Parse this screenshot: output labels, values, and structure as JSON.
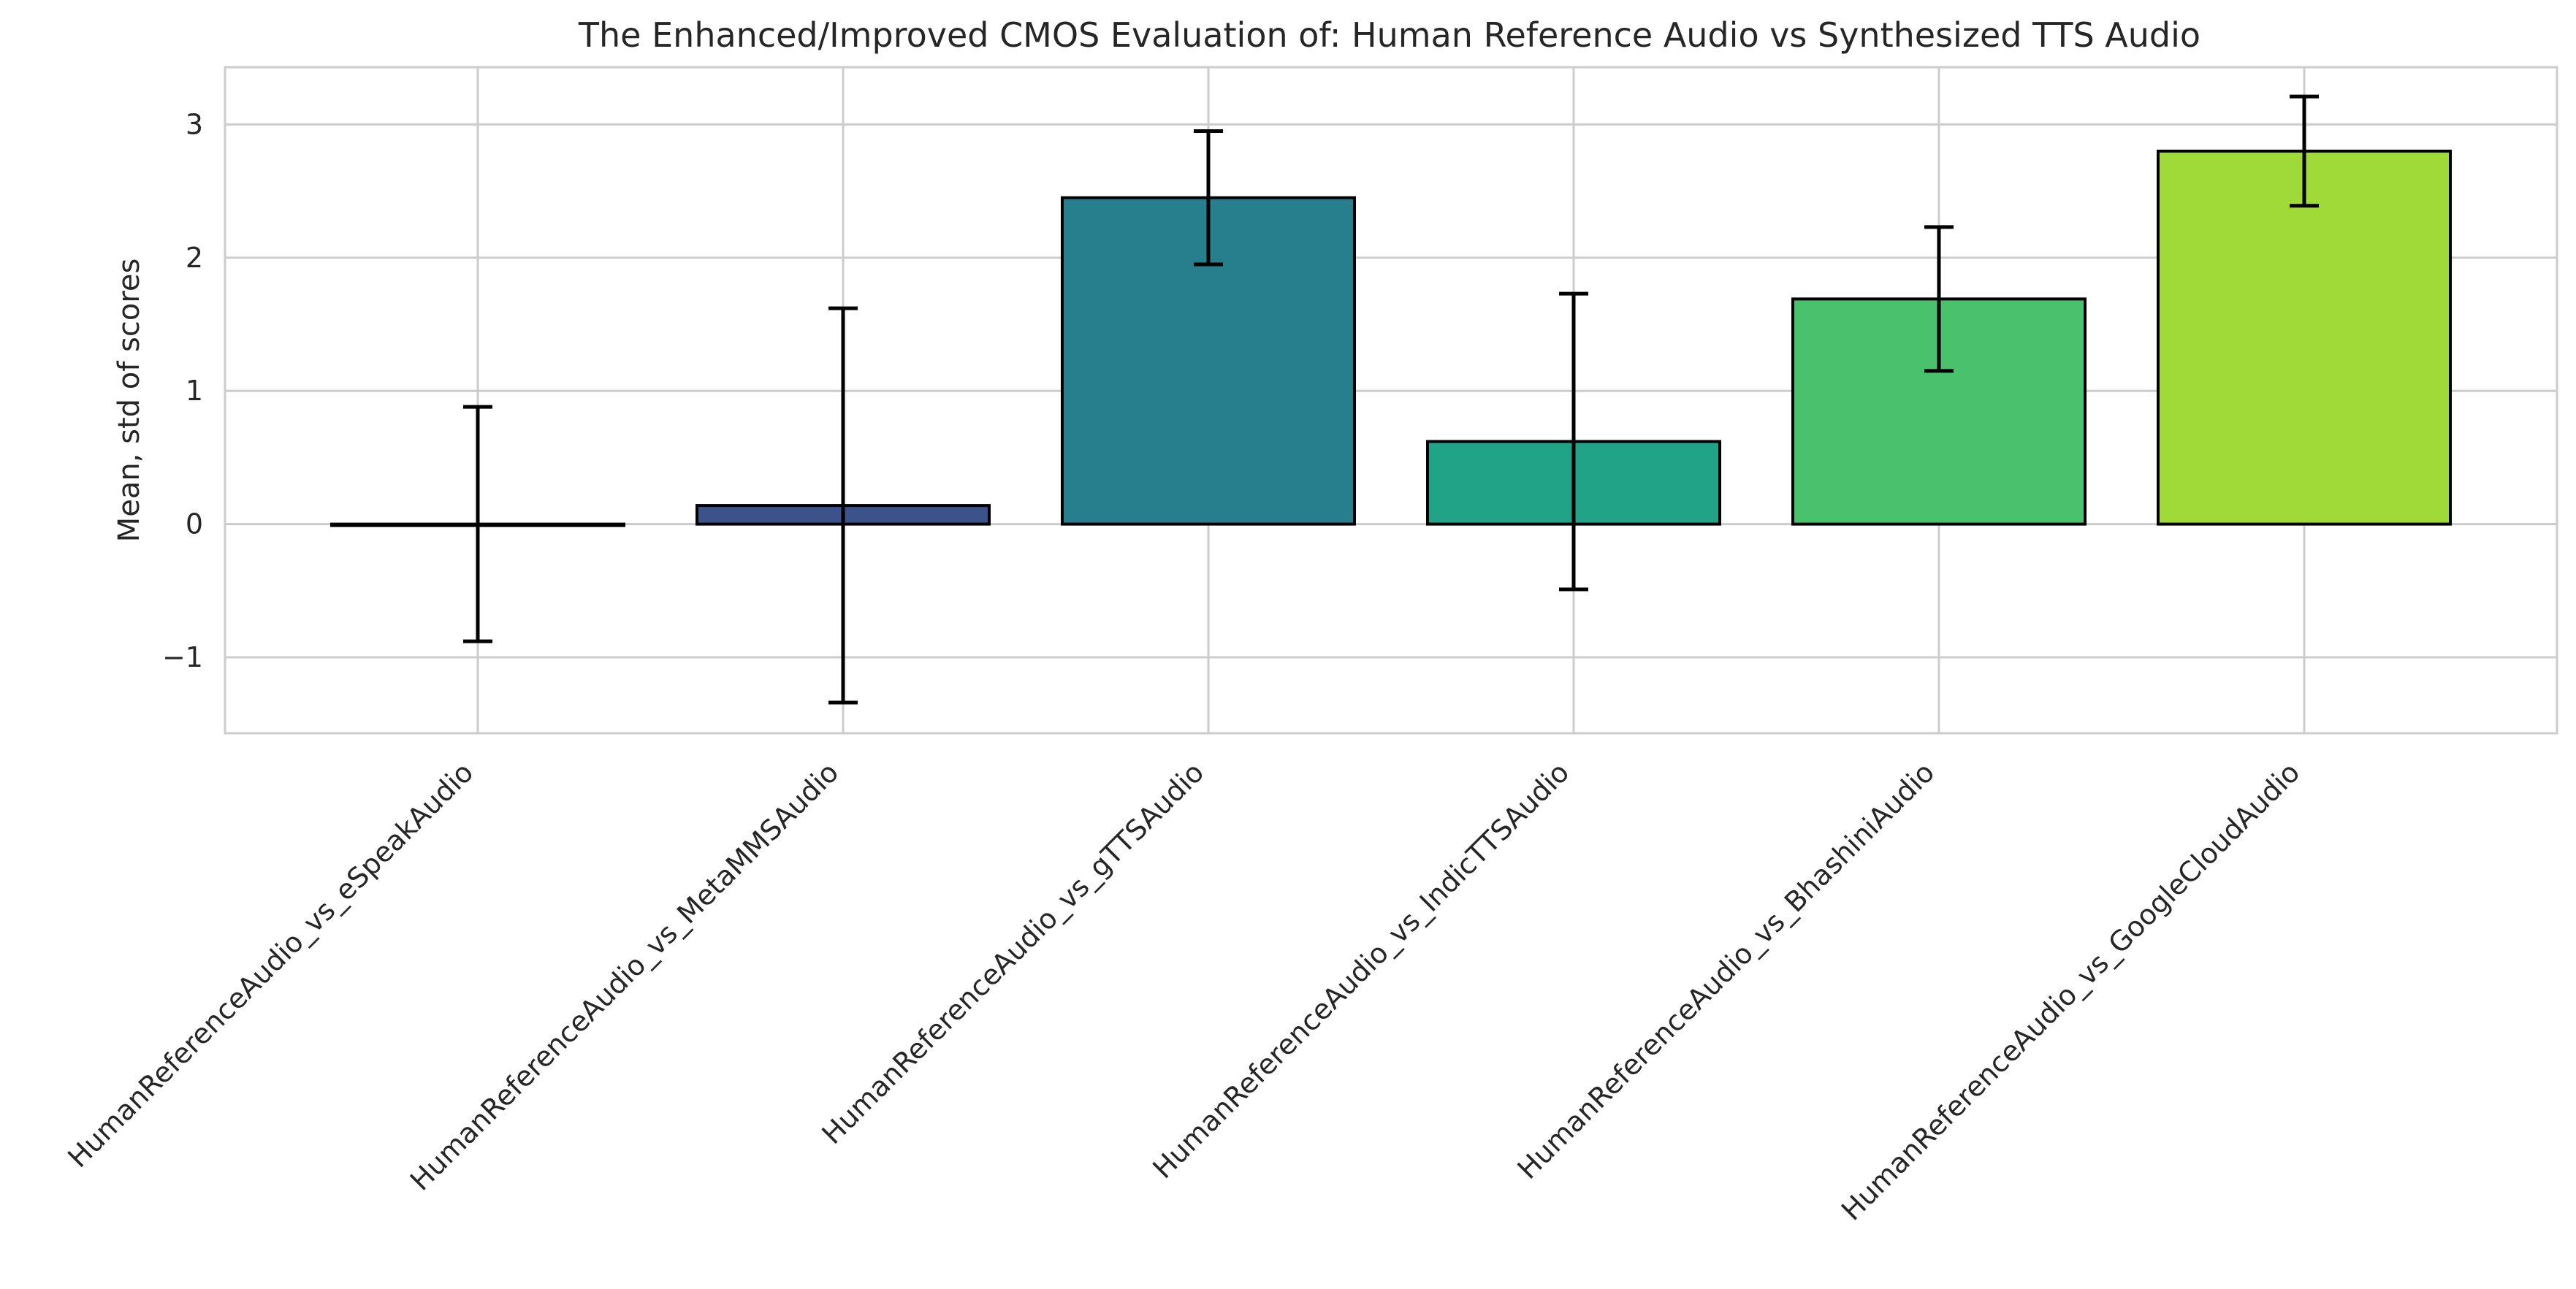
{
  "chart_data": {
    "type": "bar",
    "title": "The Enhanced/Improved CMOS Evaluation of: Human Reference Audio vs Synthesized TTS Audio",
    "xlabel": "",
    "ylabel": "Mean, std of scores",
    "ylim": [
      -1.57,
      3.43
    ],
    "yticks": [
      -1,
      0,
      1,
      2,
      3
    ],
    "ytick_labels": [
      "−1",
      "0",
      "1",
      "2",
      "3"
    ],
    "grid": true,
    "categories": [
      "HumanReferenceAudio_vs_eSpeakAudio",
      "HumanReferenceAudio_vs_MetaMMSAudio",
      "HumanReferenceAudio_vs_gTTSAudio",
      "HumanReferenceAudio_vs_IndicTTSAudio",
      "HumanReferenceAudio_vs_BhashiniAudio",
      "HumanReferenceAudio_vs_GoogleCloudAudio"
    ],
    "values": [
      0.0,
      0.14,
      2.45,
      0.62,
      1.69,
      2.8
    ],
    "std": [
      0.88,
      1.48,
      0.5,
      1.11,
      0.54,
      0.41
    ],
    "colors": [
      "#482475",
      "#3b528b",
      "#277f8e",
      "#20a386",
      "#4ac16d",
      "#a0da39"
    ]
  }
}
